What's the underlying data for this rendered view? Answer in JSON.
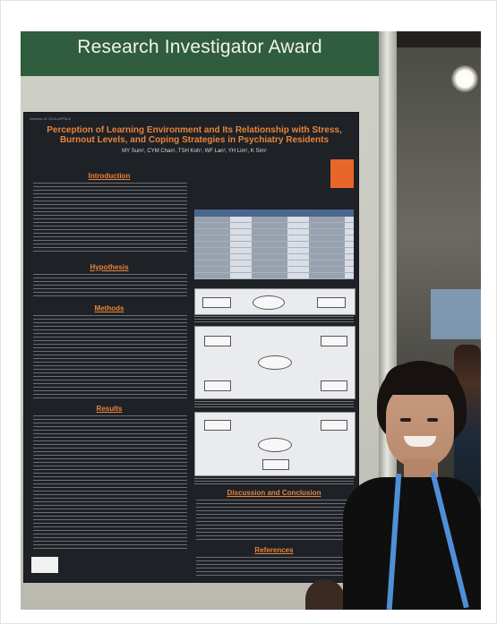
{
  "banner": {
    "title": "Research Investigator Award"
  },
  "poster": {
    "header": "Abstract ID 2016-APPM-8",
    "title": "Perception of Learning Environment and Its Relationship with Stress, Burnout Levels, and Coping Strategies in Psychiatry Residents",
    "authors": "MY Sum¹, CYM Chan¹, TSH Koh¹, WF Lan², YH Lim¹, K Sim¹",
    "sections": {
      "introduction": "Introduction",
      "hypothesis": "Hypothesis",
      "methods": "Methods",
      "results": "Results",
      "discussion": "Discussion and Conclusion",
      "references": "References"
    }
  }
}
